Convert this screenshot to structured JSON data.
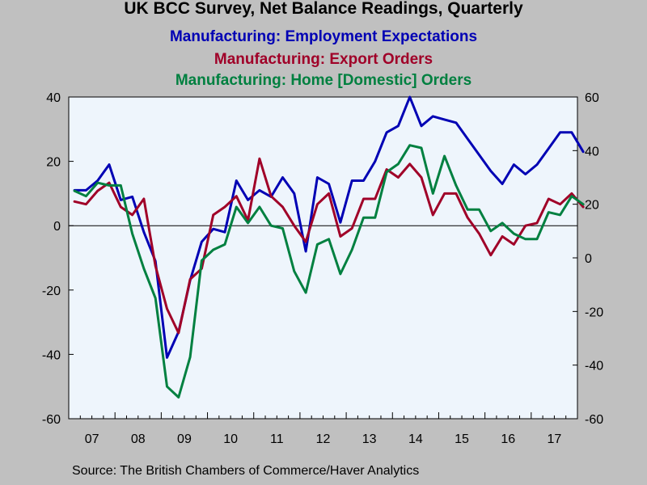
{
  "chart_data": {
    "type": "line",
    "title": "UK BCC Survey, Net Balance Readings, Quarterly",
    "source": "Source:  The British Chambers of Commerce/Haver Analytics",
    "x_labels": [
      "07",
      "08",
      "09",
      "10",
      "11",
      "12",
      "13",
      "14",
      "15",
      "16",
      "17"
    ],
    "x_start_year": 2007,
    "left_axis": {
      "ylim": [
        -60,
        40
      ],
      "ticks": [
        -60,
        -40,
        -20,
        0,
        20,
        40
      ]
    },
    "right_axis": {
      "ylim": [
        -60,
        60
      ],
      "ticks": [
        -60,
        -40,
        -20,
        0,
        20,
        40,
        60
      ]
    },
    "zero_line": true,
    "grid": false,
    "series": [
      {
        "name": "Manufacturing:  Employment  Expectations",
        "axis": "left",
        "color": "#0000b4",
        "values": [
          11,
          11,
          14,
          19,
          8,
          9,
          -2,
          -11,
          -41,
          -33,
          -17,
          -5,
          -1,
          -2,
          14,
          8,
          11,
          9,
          15,
          10,
          -8,
          15,
          13,
          1,
          14,
          14,
          20,
          29,
          31,
          40,
          31,
          34,
          33,
          32,
          27,
          22,
          17,
          13,
          19,
          16,
          19,
          24,
          29,
          29,
          23
        ]
      },
      {
        "name": "Manufacturing: Export Orders",
        "axis": "right",
        "color": "#a00028",
        "values": [
          21,
          20,
          25,
          28,
          19,
          16,
          22,
          -3,
          -19,
          -28,
          -8,
          -4,
          16,
          19,
          23,
          14,
          37,
          23,
          19,
          12,
          6,
          20,
          24,
          8,
          11,
          22,
          22,
          33,
          30,
          35,
          30,
          16,
          24,
          24,
          15,
          9,
          1,
          8,
          5,
          12,
          13,
          22,
          20,
          24,
          19
        ]
      },
      {
        "name": "Manufacturing: Home [Domestic] Orders",
        "axis": "right",
        "color": "#008040",
        "values": [
          25,
          23,
          28,
          27,
          27,
          9,
          -4,
          -15,
          -48,
          -52,
          -37,
          -1,
          3,
          5,
          19,
          13,
          19,
          12,
          11,
          -5,
          -13,
          5,
          7,
          -6,
          3,
          15,
          15,
          32,
          35,
          42,
          41,
          24,
          38,
          27,
          18,
          18,
          10,
          13,
          9,
          7,
          7,
          17,
          16,
          23,
          20
        ]
      }
    ]
  }
}
